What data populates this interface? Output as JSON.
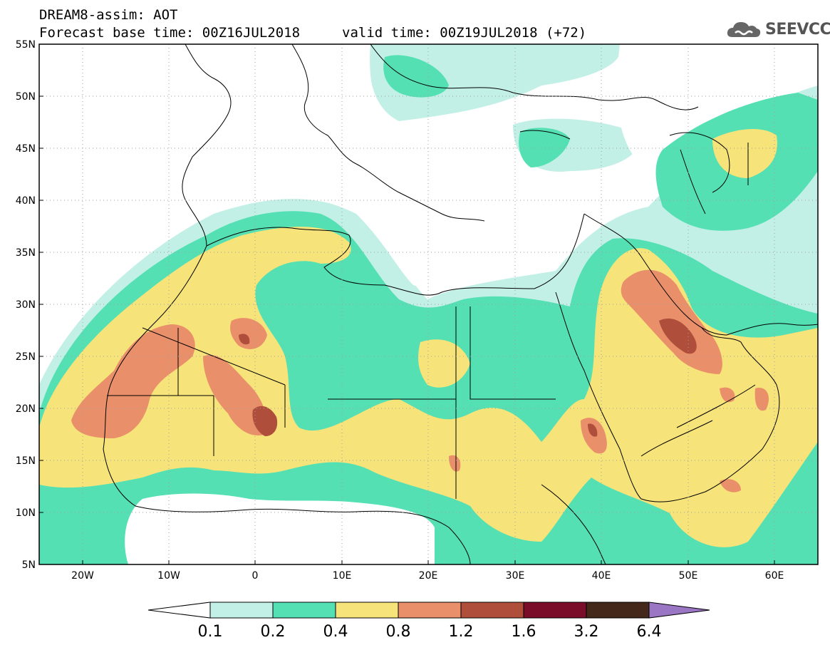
{
  "header": {
    "title": "DREAM8-assim: AOT",
    "base_time": "Forecast base time: 00Z16JUL2018",
    "valid_time": "valid time: 00Z19JUL2018 (+72)"
  },
  "logo": {
    "text": "SEEVCCC",
    "icon": "cloud-icon"
  },
  "map": {
    "lon_range": [
      -25,
      65
    ],
    "lat_range": [
      5,
      55
    ],
    "lat_ticks": [
      "55N",
      "50N",
      "45N",
      "40N",
      "35N",
      "30N",
      "25N",
      "20N",
      "15N",
      "10N",
      "5N"
    ],
    "lon_ticks": [
      "20W",
      "10W",
      "0",
      "10E",
      "20E",
      "30E",
      "40E",
      "50E",
      "60E"
    ],
    "gridlines": true
  },
  "colorbar": {
    "labels": [
      "0.1",
      "0.2",
      "0.4",
      "0.8",
      "1.2",
      "1.6",
      "3.2",
      "6.4"
    ],
    "colors": [
      "#c3f0e6",
      "#55e0b4",
      "#f6e37a",
      "#e9906a",
      "#b04e3c",
      "#7a0e2a",
      "#44281a",
      "#9b76c4"
    ]
  }
}
